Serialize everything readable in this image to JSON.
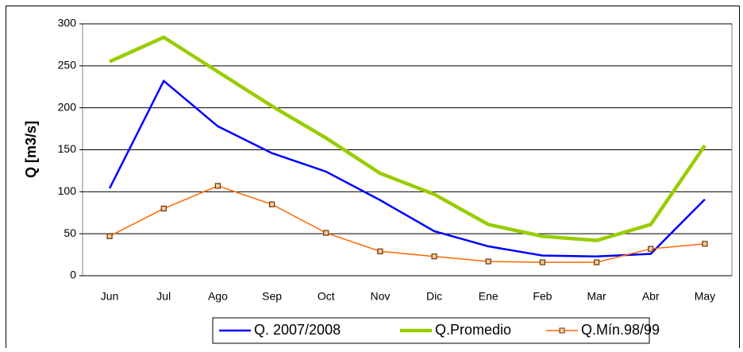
{
  "chart_data": {
    "type": "line",
    "y_label": "Q [m3/s]",
    "categories": [
      "Jun",
      "Jul",
      "Ago",
      "Sep",
      "Oct",
      "Nov",
      "Dic",
      "Ene",
      "Feb",
      "Mar",
      "Abr",
      "May"
    ],
    "series": [
      {
        "name": "Q. 2007/2008",
        "color": "#0000ff",
        "values": [
          104,
          232,
          178,
          146,
          124,
          90,
          53,
          35,
          24,
          23,
          26,
          91
        ]
      },
      {
        "name": "Q.Promedio",
        "color": "#99cc00",
        "values": [
          255,
          284,
          243,
          202,
          164,
          122,
          97,
          61,
          47,
          42,
          61,
          155
        ]
      },
      {
        "name": "Q.Mín.98/99",
        "color": "#ff6600",
        "values": [
          47,
          80,
          107,
          85,
          51,
          29,
          23,
          17,
          16,
          16,
          32,
          38
        ],
        "marker": "square"
      }
    ],
    "ylim": [
      0,
      300
    ],
    "yticks": [
      0,
      50,
      100,
      150,
      200,
      250,
      300
    ],
    "grid": true
  }
}
